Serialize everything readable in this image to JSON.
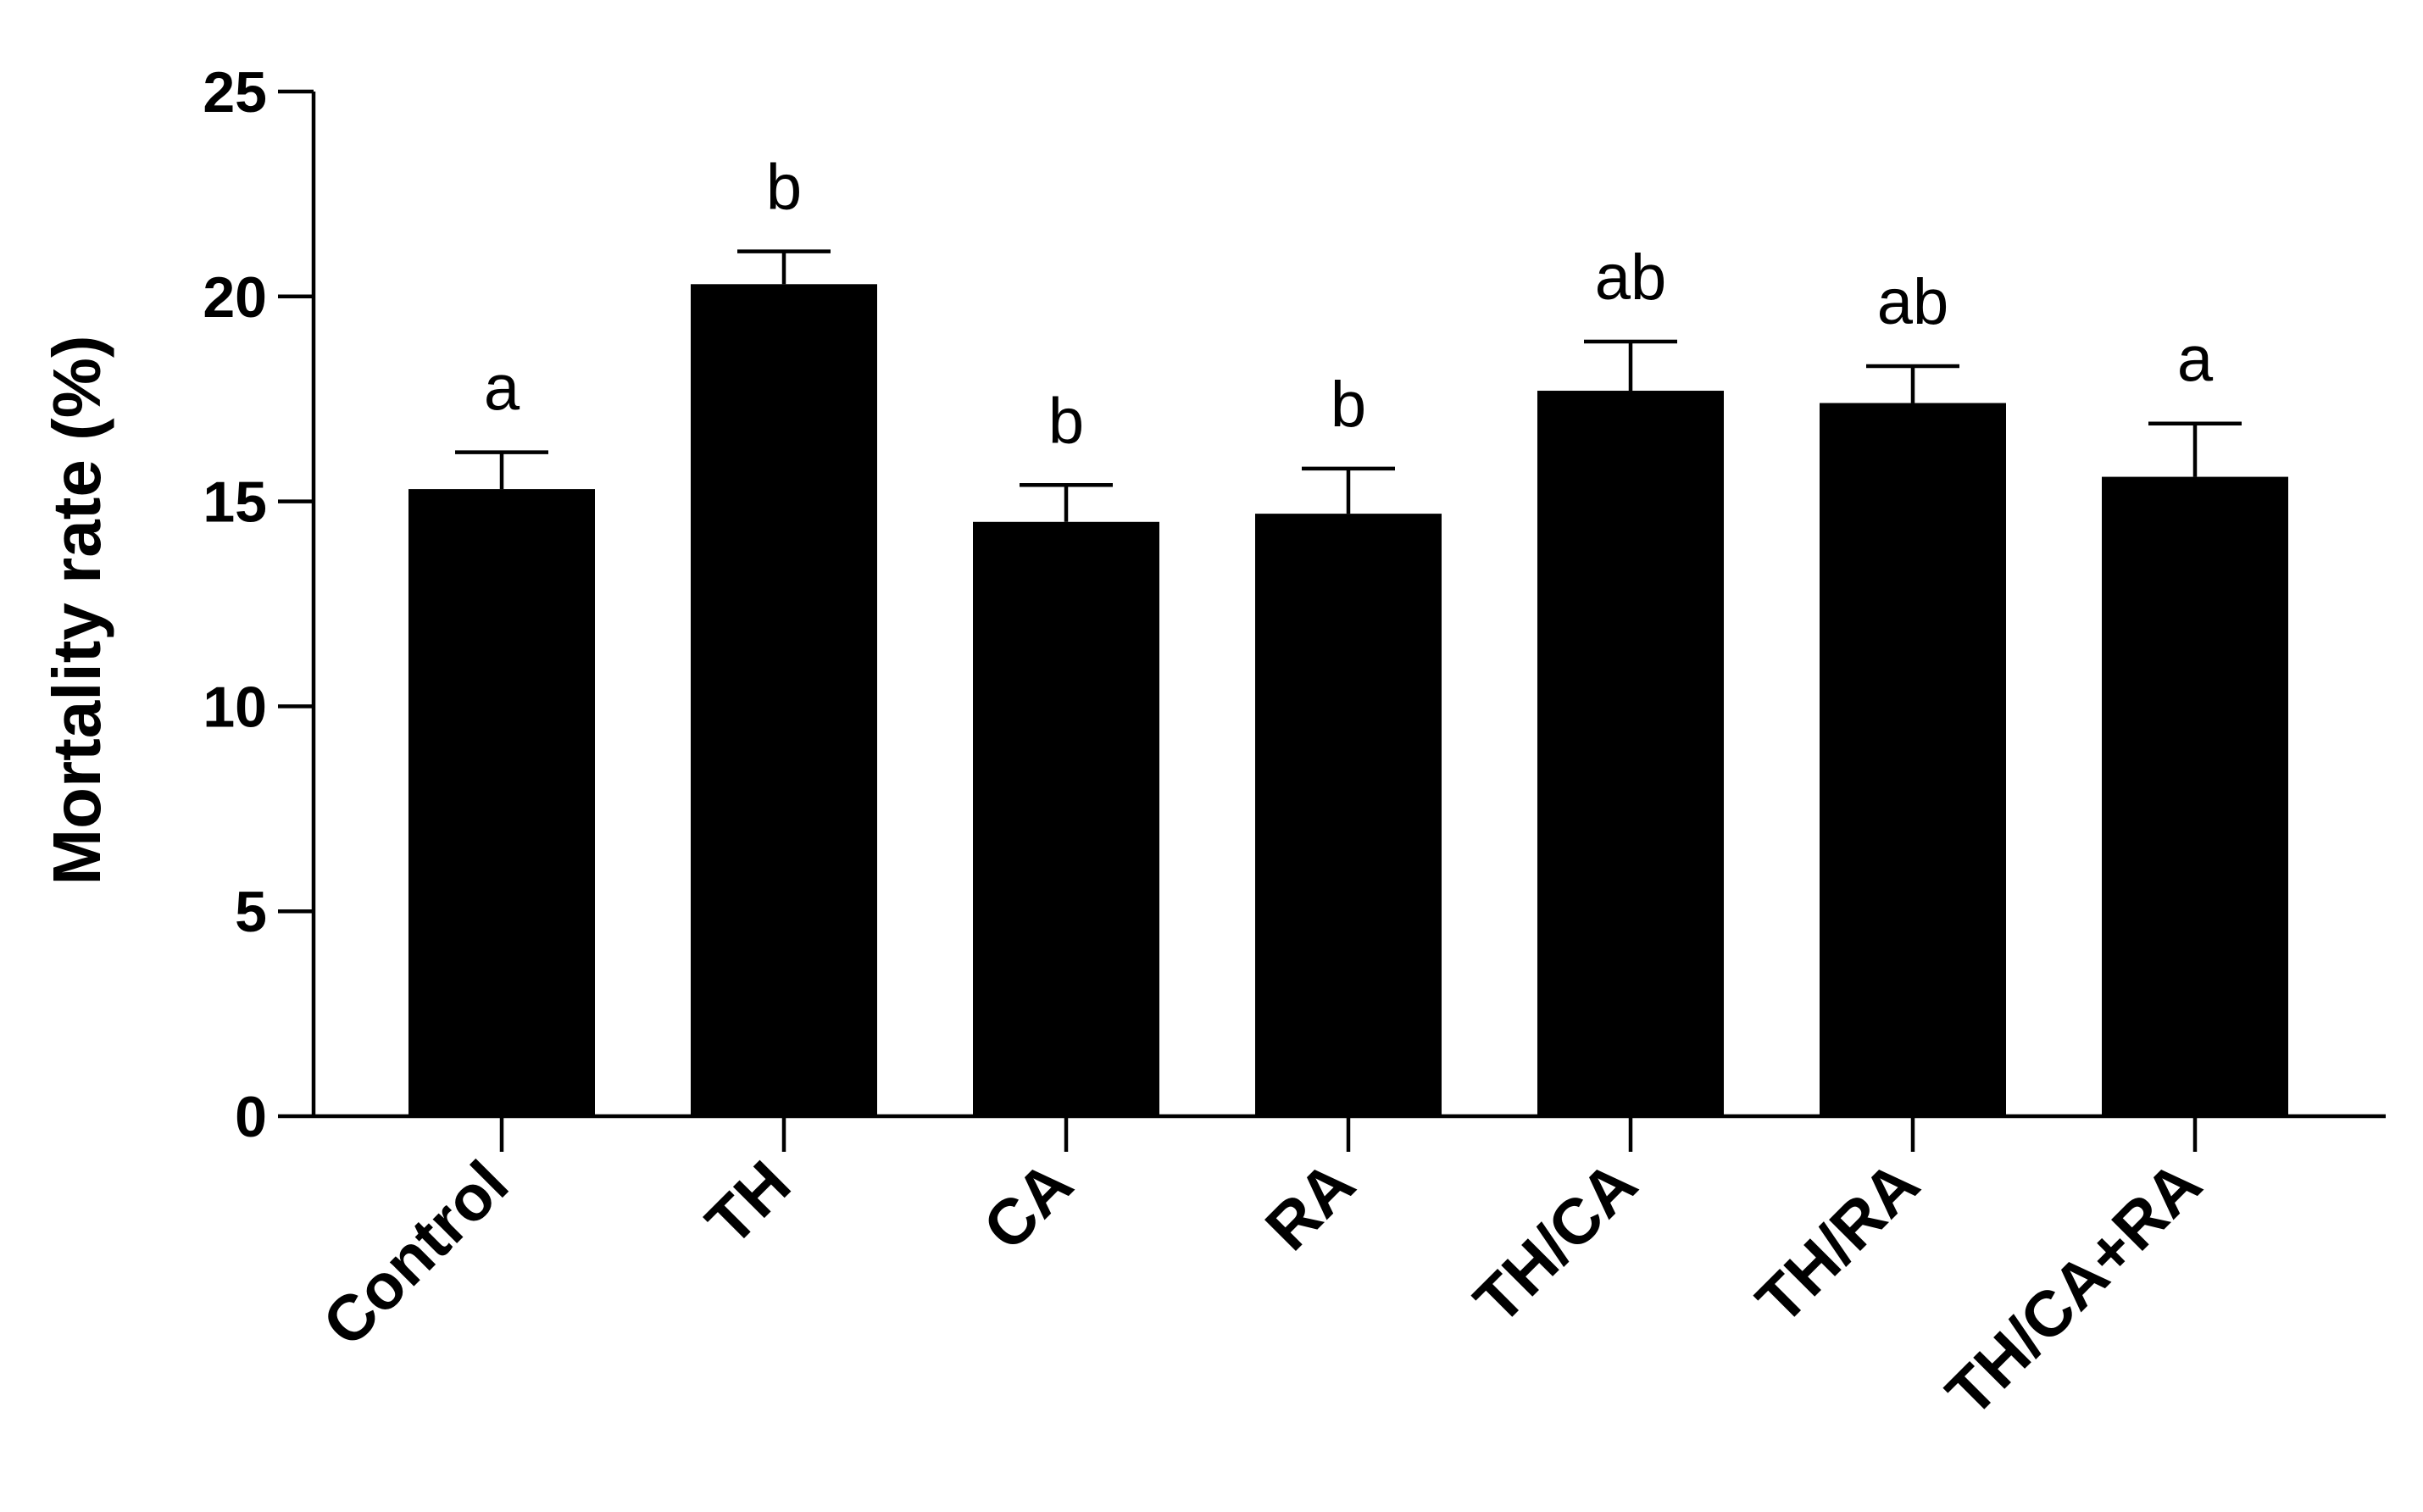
{
  "chart_data": {
    "type": "bar",
    "title": "",
    "xlabel": "",
    "ylabel": "Mortality rate (%)",
    "ylim": [
      0,
      25
    ],
    "yticks": [
      0,
      5,
      10,
      15,
      20,
      25
    ],
    "categories": [
      "Control",
      "TH",
      "CA",
      "RA",
      "TH/CA",
      "TH/RA",
      "TH/CA+RA"
    ],
    "values": [
      15.3,
      20.3,
      14.5,
      14.7,
      17.7,
      17.4,
      15.6
    ],
    "error_upper": [
      0.9,
      0.8,
      0.9,
      1.1,
      1.2,
      0.9,
      1.3
    ],
    "significance": [
      "a",
      "b",
      "b",
      "b",
      "ab",
      "ab",
      "a"
    ],
    "bar_color": "#000000",
    "grid": false,
    "legend": "none"
  }
}
